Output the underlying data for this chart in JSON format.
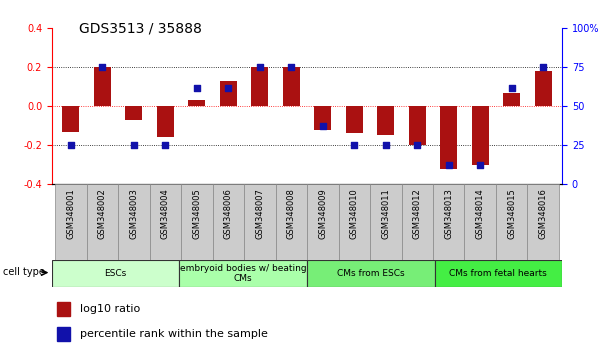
{
  "title": "GDS3513 / 35888",
  "samples": [
    "GSM348001",
    "GSM348002",
    "GSM348003",
    "GSM348004",
    "GSM348005",
    "GSM348006",
    "GSM348007",
    "GSM348008",
    "GSM348009",
    "GSM348010",
    "GSM348011",
    "GSM348012",
    "GSM348013",
    "GSM348014",
    "GSM348015",
    "GSM348016"
  ],
  "log10_ratio": [
    -0.13,
    0.2,
    -0.07,
    -0.16,
    0.03,
    0.13,
    0.2,
    0.2,
    -0.12,
    -0.14,
    -0.15,
    -0.2,
    -0.32,
    -0.3,
    0.07,
    0.18
  ],
  "percentile_rank": [
    25,
    75,
    25,
    25,
    62,
    62,
    75,
    75,
    37,
    25,
    25,
    25,
    12,
    12,
    62,
    75
  ],
  "cell_type_groups": [
    {
      "label": "ESCs",
      "start": 0,
      "end": 4,
      "color": "#ccffcc"
    },
    {
      "label": "embryoid bodies w/ beating\nCMs",
      "start": 4,
      "end": 8,
      "color": "#aaffaa"
    },
    {
      "label": "CMs from ESCs",
      "start": 8,
      "end": 12,
      "color": "#77ee77"
    },
    {
      "label": "CMs from fetal hearts",
      "start": 12,
      "end": 16,
      "color": "#44ee44"
    }
  ],
  "ylim_left": [
    -0.4,
    0.4
  ],
  "ylim_right": [
    0,
    100
  ],
  "yticks_left": [
    -0.4,
    -0.2,
    0.0,
    0.2,
    0.4
  ],
  "yticks_right": [
    0,
    25,
    50,
    75,
    100
  ],
  "bar_color_red": "#aa1111",
  "dot_color_blue": "#1111aa",
  "bar_width": 0.55,
  "dot_size": 22,
  "title_fontsize": 10,
  "tick_fontsize": 7,
  "legend_fontsize": 8,
  "label_fontsize": 7,
  "sample_fontsize": 6
}
